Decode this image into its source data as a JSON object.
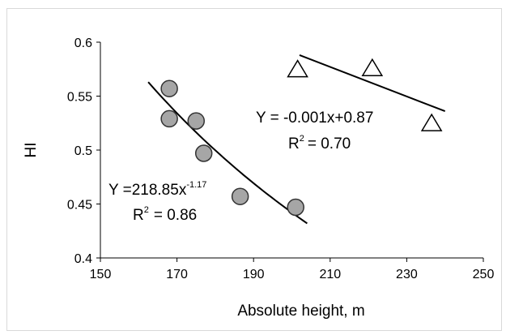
{
  "chart_data": {
    "type": "scatter",
    "xlabel": "Absolute height, m",
    "ylabel": "HI",
    "xlim": [
      150,
      250
    ],
    "ylim": [
      0.4,
      0.6
    ],
    "xticks": [
      "150",
      "170",
      "190",
      "210",
      "230",
      "250"
    ],
    "yticks": [
      "0.4",
      "0.45",
      "0.5",
      "0.55",
      "0.6"
    ],
    "grid": false,
    "series": [
      {
        "marker": "circle",
        "color": "#a6a6a6",
        "points": [
          [
            168,
            0.557
          ],
          [
            168,
            0.529
          ],
          [
            175,
            0.527
          ],
          [
            177,
            0.497
          ],
          [
            186.5,
            0.457
          ],
          [
            201,
            0.447
          ]
        ],
        "fit": {
          "x_range": [
            162.5,
            204
          ],
          "y_range": [
            0.563,
            0.432
          ],
          "equation_base": "Y =218.85x",
          "equation_exponent": "-1.17",
          "r2_prefix": "R",
          "r2_exp": "2",
          "r2_value": "= 0.86"
        }
      },
      {
        "marker": "triangle",
        "color": "#ffffff",
        "points": [
          [
            201.5,
            0.574
          ],
          [
            221,
            0.575
          ],
          [
            236.5,
            0.524
          ]
        ],
        "fit": {
          "x_range": [
            202,
            240
          ],
          "y_range": [
            0.588,
            0.536
          ],
          "equation": "Y = -0.001x+0.87",
          "r2_prefix": "R",
          "r2_exp": "2",
          "r2_value": "= 0.70"
        }
      }
    ]
  }
}
